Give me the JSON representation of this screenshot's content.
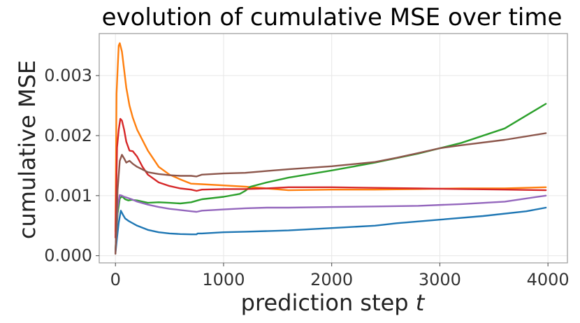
{
  "chart_data": {
    "type": "line",
    "title": "evolution of cumulative MSE over time",
    "xlabel": "prediction step t",
    "ylabel": "cumulative MSE",
    "xlim": [
      -150,
      4180
    ],
    "ylim": [
      -0.00012,
      0.0037
    ],
    "x_ticks": [
      0,
      1000,
      2000,
      3000,
      4000
    ],
    "x_tick_labels": [
      "0",
      "1000",
      "2000",
      "3000",
      "4000"
    ],
    "y_ticks": [
      0.0,
      0.001,
      0.002,
      0.003
    ],
    "y_tick_labels": [
      "0.000",
      "0.001",
      "0.002",
      "0.003"
    ],
    "grid": true,
    "legend": "none",
    "series": [
      {
        "color": "#1f77b4",
        "x": [
          0,
          15,
          30,
          50,
          70,
          90,
          120,
          150,
          200,
          300,
          400,
          500,
          600,
          700,
          750,
          760,
          800,
          1000,
          1200,
          1600,
          2000,
          2400,
          2600,
          3000,
          3400,
          3800,
          3980
        ],
        "y": [
          4e-05,
          0.0003,
          0.00055,
          0.00075,
          0.00068,
          0.00062,
          0.00058,
          0.00055,
          0.0005,
          0.00043,
          0.00039,
          0.00037,
          0.00036,
          0.000355,
          0.000355,
          0.00037,
          0.00037,
          0.00039,
          0.0004,
          0.00042,
          0.00046,
          0.0005,
          0.00054,
          0.0006,
          0.00066,
          0.00074,
          0.0008
        ]
      },
      {
        "color": "#ff7f0e",
        "x": [
          0,
          10,
          20,
          30,
          40,
          60,
          80,
          100,
          130,
          160,
          200,
          300,
          400,
          500,
          600,
          700,
          800,
          1000,
          1200,
          1400,
          1600,
          2000,
          2400,
          2800,
          3200,
          3600,
          3980
        ],
        "y": [
          0.0004,
          0.0027,
          0.0031,
          0.0035,
          0.00354,
          0.0034,
          0.0031,
          0.0028,
          0.0025,
          0.0023,
          0.0021,
          0.00175,
          0.00148,
          0.00135,
          0.00127,
          0.0012,
          0.00119,
          0.00117,
          0.00115,
          0.00112,
          0.00109,
          0.0011,
          0.0011,
          0.00111,
          0.00112,
          0.00112,
          0.00114
        ]
      },
      {
        "color": "#2ca02c",
        "x": [
          0,
          20,
          40,
          60,
          90,
          120,
          150,
          200,
          300,
          400,
          500,
          600,
          700,
          760,
          800,
          1000,
          1150,
          1200,
          1250,
          1400,
          1600,
          2000,
          2400,
          2800,
          3200,
          3600,
          3980
        ],
        "y": [
          0.0001,
          0.0007,
          0.00095,
          0.00099,
          0.00094,
          0.00092,
          0.00093,
          0.00092,
          0.00088,
          0.00089,
          0.00088,
          0.00087,
          0.00089,
          0.00092,
          0.00094,
          0.00098,
          0.00103,
          0.00108,
          0.00115,
          0.00122,
          0.0013,
          0.00142,
          0.00155,
          0.0017,
          0.00188,
          0.00212,
          0.00253
        ]
      },
      {
        "color": "#d62728",
        "x": [
          0,
          15,
          30,
          45,
          60,
          80,
          100,
          130,
          160,
          200,
          250,
          300,
          400,
          500,
          600,
          700,
          750,
          800,
          1000,
          1200,
          1400,
          1600,
          2000,
          2400,
          2800,
          3200,
          3600,
          3980
        ],
        "y": [
          0.0003,
          0.0018,
          0.0021,
          0.00228,
          0.00225,
          0.0021,
          0.0019,
          0.00175,
          0.00174,
          0.00165,
          0.00148,
          0.00135,
          0.00122,
          0.00116,
          0.00112,
          0.0011,
          0.00108,
          0.0011,
          0.00111,
          0.00111,
          0.00112,
          0.00114,
          0.00114,
          0.00113,
          0.00112,
          0.00111,
          0.0011,
          0.00109
        ]
      },
      {
        "color": "#9467bd",
        "x": [
          0,
          20,
          40,
          60,
          80,
          100,
          150,
          200,
          300,
          400,
          500,
          600,
          700,
          750,
          800,
          1000,
          1200,
          1400,
          1600,
          2000,
          2400,
          2800,
          3200,
          3600,
          3980
        ],
        "y": [
          5e-05,
          0.0008,
          0.00101,
          0.001,
          0.00098,
          0.00097,
          0.00094,
          0.0009,
          0.00085,
          0.00081,
          0.00078,
          0.00076,
          0.00074,
          0.00073,
          0.00075,
          0.00077,
          0.00079,
          0.0008,
          0.0008,
          0.00081,
          0.00082,
          0.00083,
          0.00086,
          0.0009,
          0.001
        ]
      },
      {
        "color": "#8c564b",
        "x": [
          0,
          20,
          40,
          60,
          80,
          100,
          130,
          160,
          200,
          300,
          400,
          500,
          600,
          700,
          750,
          800,
          1000,
          1200,
          1400,
          1600,
          2000,
          2400,
          2600,
          2800,
          3000,
          3200,
          3600,
          3980
        ],
        "y": [
          3e-05,
          0.0011,
          0.00158,
          0.00168,
          0.00162,
          0.00155,
          0.00158,
          0.00153,
          0.00148,
          0.00139,
          0.00136,
          0.00134,
          0.00133,
          0.00133,
          0.00132,
          0.00135,
          0.00137,
          0.00138,
          0.00141,
          0.00144,
          0.00149,
          0.00156,
          0.00163,
          0.00171,
          0.00179,
          0.00184,
          0.00193,
          0.00204
        ]
      }
    ]
  }
}
